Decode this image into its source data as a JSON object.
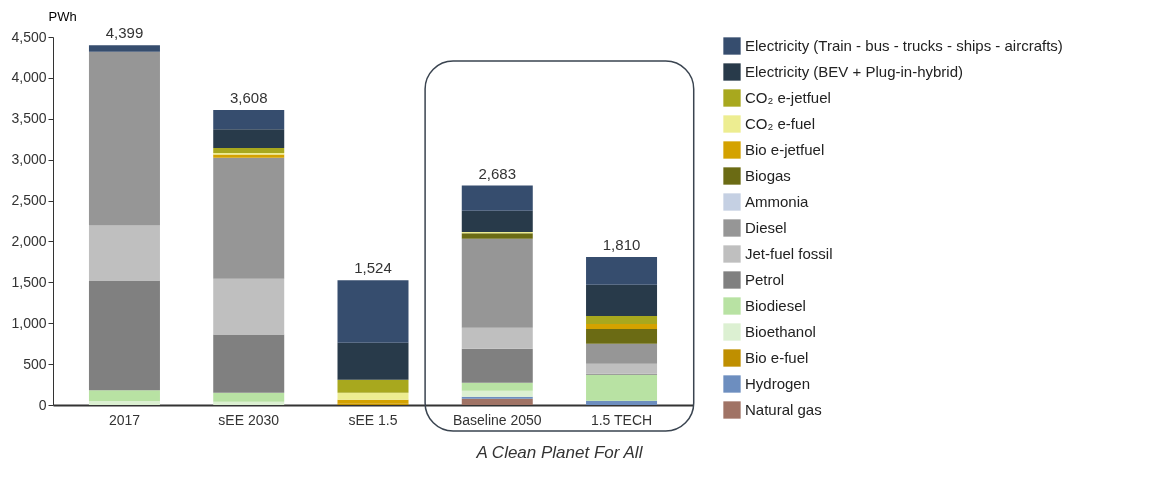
{
  "chart_data": {
    "type": "bar",
    "stacked": true,
    "ylabel": "PWh",
    "categories": [
      "2017",
      "sEE 2030",
      "sEE 1.5",
      "Baseline 2050",
      "1.5 TECH"
    ],
    "series": [
      {
        "name": "Natural gas",
        "color": "#a07365",
        "values": [
          null,
          null,
          null,
          77,
          null
        ]
      },
      {
        "name": "Hydrogen",
        "color": "#6d8ebf",
        "values": [
          null,
          null,
          null,
          24,
          53
        ]
      },
      {
        "name": "Bio e-fuel",
        "color": "#bf8f00",
        "values": [
          null,
          null,
          15,
          null,
          null
        ]
      },
      {
        "name": "Bioethanol",
        "color": "#dcf0d2",
        "values": [
          50,
          40,
          null,
          74,
          null
        ]
      },
      {
        "name": "Biodiesel",
        "color": "#b8e2a3",
        "values": [
          130,
          110,
          null,
          98,
          317
        ]
      },
      {
        "name": "Petrol",
        "color": "#808080",
        "values": [
          1343,
          713,
          null,
          415,
          13
        ]
      },
      {
        "name": "Jet-fuel fossil",
        "color": "#bfbfbf",
        "values": [
          672,
          680,
          null,
          257,
          122
        ]
      },
      {
        "name": "Diesel",
        "color": "#969696",
        "values": [
          2126,
          1479,
          null,
          1087,
          244
        ]
      },
      {
        "name": "Ammonia",
        "color": "#c5d0e3",
        "values": [
          null,
          null,
          null,
          null,
          null
        ]
      },
      {
        "name": "Biogas",
        "color": "#6b6b14",
        "values": [
          null,
          null,
          null,
          68,
          180
        ]
      },
      {
        "name": "Bio e-jetfuel",
        "color": "#d4a200",
        "values": [
          null,
          41,
          50,
          null,
          61
        ]
      },
      {
        "name": "CO₂ e-fuel",
        "color": "#eded91",
        "values": [
          null,
          20,
          85,
          14,
          null
        ]
      },
      {
        "name": "CO₂ e-jetfuel",
        "color": "#a8a81e",
        "values": [
          null,
          61,
          159,
          null,
          98
        ]
      },
      {
        "name": "Electricity (BEV + Plug-in-hybrid)",
        "color": "#283a4a",
        "values": [
          null,
          228,
          452,
          260,
          382
        ]
      },
      {
        "name": "Electricity (Train - bus - trucks - ships - aircrafts)",
        "color": "#364d6e",
        "values": [
          78,
          236,
          763,
          309,
          340
        ]
      }
    ],
    "totals": [
      "4,399",
      "3,608",
      "1,524",
      "2,683",
      "1,810"
    ],
    "ylim": [
      0,
      4500
    ],
    "yticks": [
      0,
      500,
      {
        "value": 1000,
        "label": "1,000"
      },
      {
        "value": 1500,
        "label": "1,500"
      },
      {
        "value": 2000,
        "label": "2,000"
      },
      {
        "value": 2500,
        "label": "2,500"
      },
      {
        "value": 3000,
        "label": "3,000"
      },
      {
        "value": 3500,
        "label": "3,500"
      },
      {
        "value": 4000,
        "label": "4,000"
      },
      {
        "value": 4500,
        "label": "4,500"
      }
    ],
    "grid": false,
    "legend": "right",
    "annotations": [
      "A Clean Planet For All"
    ]
  }
}
